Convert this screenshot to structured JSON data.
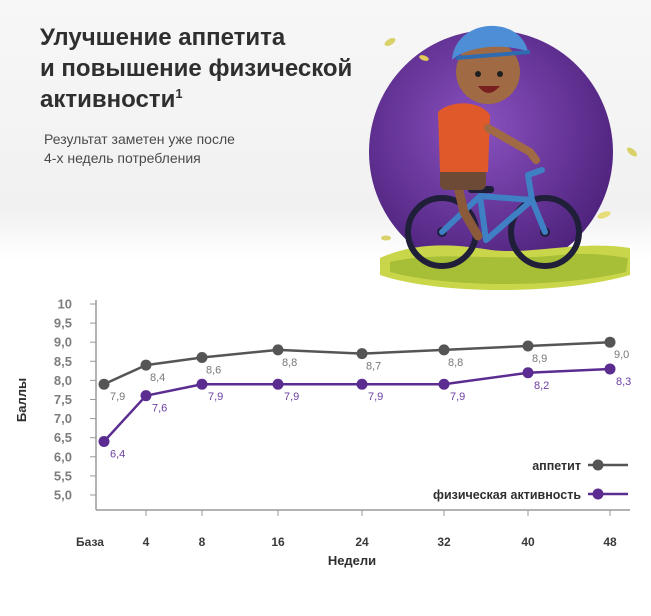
{
  "header": {
    "title_lines": [
      "Улучшение аппетита",
      "и повышение физической",
      "активности"
    ],
    "title_sup": "1",
    "subtitle_lines": [
      "Результат заметен уже после",
      "4-х недель потребления"
    ]
  },
  "illustration": {
    "icon": "child-on-bicycle-illustration"
  },
  "colors": {
    "appetite": "#555555",
    "activity": "#5b2d91",
    "axis": "#9a9a9a",
    "bg_circle": "#5a2a8a"
  },
  "chart_data": {
    "type": "line",
    "categories": [
      "База",
      "4",
      "8",
      "16",
      "24",
      "32",
      "40",
      "48"
    ],
    "yticks": [
      "10",
      "9,5",
      "9,0",
      "8,5",
      "8,0",
      "7,5",
      "7,0",
      "6,5",
      "6,0",
      "5,5",
      "5,0"
    ],
    "ylim": [
      5.0,
      10.0
    ],
    "xlabel": "Недели",
    "ylabel": "Баллы",
    "legend_position": "bottom-right",
    "series": [
      {
        "name": "аппетит",
        "color": "#555555",
        "values": [
          7.9,
          8.4,
          8.6,
          8.8,
          8.7,
          8.8,
          8.9,
          9.0
        ],
        "labels": [
          "7,9",
          "8,4",
          "8,6",
          "8,8",
          "8,7",
          "8,8",
          "8,9",
          "9,0"
        ]
      },
      {
        "name": "физическая активность",
        "color": "#5b2d91",
        "values": [
          6.4,
          7.6,
          7.9,
          7.9,
          7.9,
          7.9,
          8.2,
          8.3
        ],
        "labels": [
          "6,4",
          "7,6",
          "7,9",
          "7,9",
          "7,9",
          "7,9",
          "8,2",
          "8,3"
        ]
      }
    ]
  }
}
